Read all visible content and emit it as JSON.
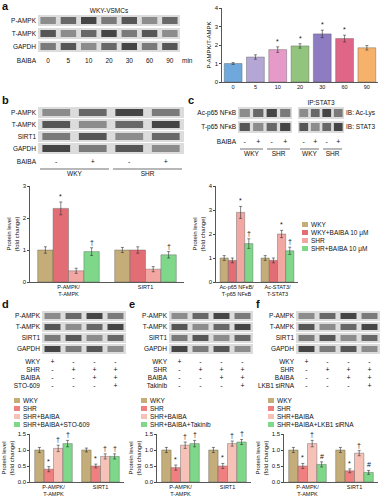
{
  "chart_data": [
    {
      "type": "bar",
      "y_label": "P-AMPK/T-AMPK",
      "categories": [
        "0",
        "5",
        "10",
        "20",
        "30",
        "60",
        "90"
      ],
      "values": [
        1.0,
        1.35,
        1.75,
        1.95,
        2.6,
        2.35,
        1.85
      ],
      "errors": [
        0.05,
        0.12,
        0.15,
        0.12,
        0.2,
        0.18,
        0.12
      ],
      "colors": [
        "#6fa8dc",
        "#b4a7d6",
        "#e69ac9",
        "#93c47d",
        "#8e7cc3",
        "#e06688",
        "#f6b26b"
      ],
      "annotations": [
        null,
        null,
        "*",
        "*",
        "*",
        "*",
        null
      ],
      "ylim": [
        0,
        4
      ],
      "yticks": [
        0,
        1,
        2,
        3,
        4
      ],
      "grid": false
    },
    {
      "type": "bar",
      "y_label": "Protein level (fold change)",
      "categories": [
        "P-AMPK/T-AMPK",
        "SIRT1"
      ],
      "series": [
        {
          "name": "WKY",
          "color": "#c4ad78",
          "values": [
            1.0,
            1.0
          ],
          "errors": [
            0.1,
            0.08
          ],
          "annotations": [
            null,
            null
          ]
        },
        {
          "name": "WKY+BAIBA 10 μM",
          "color": "#e26d74",
          "values": [
            2.3,
            1.0
          ],
          "errors": [
            0.2,
            0.1
          ],
          "annotations": [
            "*",
            null
          ]
        },
        {
          "name": "SHR",
          "color": "#f2a7a3",
          "values": [
            0.35,
            0.4
          ],
          "errors": [
            0.08,
            0.08
          ],
          "annotations": [
            null,
            null
          ]
        },
        {
          "name": "SHR+BAIBA 10 μM",
          "color": "#7fd88a",
          "values": [
            0.95,
            0.85
          ],
          "errors": [
            0.12,
            0.1
          ],
          "annotations": [
            "†",
            "†"
          ]
        }
      ],
      "ylim": [
        0,
        3
      ],
      "yticks": [
        0,
        1,
        2,
        3
      ],
      "grid": false
    },
    {
      "type": "bar",
      "y_label": "Protein level (fold change)",
      "categories": [
        "Ac-p65 NFκB/T-p65 NFκB",
        "Ac-STAT3/T-STAT3"
      ],
      "series": [
        {
          "name": "WKY",
          "color": "#c4ad78",
          "values": [
            1.0,
            1.0
          ],
          "errors": [
            0.1,
            0.1
          ],
          "annotations": [
            null,
            null
          ]
        },
        {
          "name": "WKY+BAIBA 10 μM",
          "color": "#e26d74",
          "values": [
            0.9,
            0.9
          ],
          "errors": [
            0.1,
            0.1
          ],
          "annotations": [
            null,
            null
          ]
        },
        {
          "name": "SHR",
          "color": "#f2a7a3",
          "values": [
            2.9,
            2.0
          ],
          "errors": [
            0.25,
            0.15
          ],
          "annotations": [
            "*",
            "*"
          ]
        },
        {
          "name": "SHR+BAIBA 10 μM",
          "color": "#7fd88a",
          "values": [
            1.6,
            1.3
          ],
          "errors": [
            0.2,
            0.15
          ],
          "annotations": [
            "†",
            "†"
          ]
        }
      ],
      "ylim": [
        0,
        4
      ],
      "yticks": [
        0,
        1,
        2,
        3,
        4
      ],
      "grid": false,
      "legend": "right"
    },
    {
      "type": "bar",
      "y_label": "Protein level (fold change)",
      "categories": [
        "P-AMPK/T-AMPK",
        "SIRT1"
      ],
      "series": [
        {
          "name": "WKY",
          "color": "#c4ad78",
          "values": [
            1.0,
            1.0
          ],
          "errors": [
            0.08,
            0.06
          ],
          "annotations": [
            null,
            null
          ]
        },
        {
          "name": "SHR",
          "color": "#f08080",
          "values": [
            0.4,
            0.5
          ],
          "errors": [
            0.08,
            0.06
          ],
          "annotations": [
            "*",
            "*"
          ]
        },
        {
          "name": "SHR+BAIBA",
          "color": "#f6c2b8",
          "values": [
            1.05,
            0.8
          ],
          "errors": [
            0.1,
            0.08
          ],
          "annotations": [
            "†",
            "†"
          ]
        },
        {
          "name": "SHR+BAIBA+STO-609",
          "color": "#7fd88a",
          "values": [
            1.2,
            0.8
          ],
          "errors": [
            0.1,
            0.08
          ],
          "annotations": [
            "†",
            "†"
          ]
        }
      ],
      "ylim": [
        0,
        1.5
      ],
      "yticks": [
        {
          "value": 0,
          "label": "0.0"
        },
        0.5,
        {
          "value": 1,
          "label": "1.0"
        },
        1.5
      ],
      "grid": false,
      "legend": "top"
    },
    {
      "type": "bar",
      "y_label": "Protein level (fold change)",
      "categories": [
        "P-AMPK/T-AMPK",
        "SIRT1"
      ],
      "series": [
        {
          "name": "WKY",
          "color": "#c4ad78",
          "values": [
            1.0,
            1.0
          ],
          "errors": [
            0.08,
            0.08
          ],
          "annotations": [
            null,
            null
          ]
        },
        {
          "name": "SHR",
          "color": "#f08080",
          "values": [
            0.45,
            0.5
          ],
          "errors": [
            0.08,
            0.08
          ],
          "annotations": [
            "*",
            "*"
          ]
        },
        {
          "name": "SHR+BAIBA",
          "color": "#f6c2b8",
          "values": [
            1.15,
            1.2
          ],
          "errors": [
            0.1,
            0.08
          ],
          "annotations": [
            "†",
            "†"
          ]
        },
        {
          "name": "SHR+BAIBA+Takinib",
          "color": "#7fd88a",
          "values": [
            1.2,
            1.25
          ],
          "errors": [
            0.1,
            0.08
          ],
          "annotations": [
            "†",
            "†"
          ]
        }
      ],
      "ylim": [
        0,
        1.5
      ],
      "yticks": [
        {
          "value": 0,
          "label": "0.0"
        },
        0.5,
        {
          "value": 1,
          "label": "1.0"
        },
        1.5
      ],
      "grid": false,
      "legend": "top"
    },
    {
      "type": "bar",
      "y_label": "Protein level (fold change)",
      "categories": [
        "P-AMPK/T-AMPK",
        "SIRT1"
      ],
      "series": [
        {
          "name": "WKY",
          "color": "#c4ad78",
          "values": [
            1.0,
            1.0
          ],
          "errors": [
            0.08,
            0.08
          ],
          "annotations": [
            null,
            null
          ]
        },
        {
          "name": "SHR",
          "color": "#f08080",
          "values": [
            0.5,
            0.35
          ],
          "errors": [
            0.08,
            0.06
          ],
          "annotations": [
            "*",
            "*"
          ]
        },
        {
          "name": "SHR+BAIBA",
          "color": "#f6c2b8",
          "values": [
            1.2,
            0.9
          ],
          "errors": [
            0.1,
            0.08
          ],
          "annotations": [
            "†",
            "†"
          ]
        },
        {
          "name": "SHR+BAIBA+LKB1 siRNA",
          "color": "#7fd88a",
          "values": [
            0.55,
            0.3
          ],
          "errors": [
            0.08,
            0.06
          ],
          "annotations": [
            "#",
            "#"
          ]
        }
      ],
      "ylim": [
        0,
        1.5
      ],
      "yticks": [
        {
          "value": 0,
          "label": "0.0"
        },
        0.5,
        {
          "value": 1,
          "label": "1.0"
        },
        1.5
      ],
      "grid": false,
      "legend": "top"
    }
  ],
  "blots": [
    {
      "panel": "a",
      "header": "WKY-VSMCs",
      "rows": [
        "P-AMPK",
        "T-AMPK",
        "GAPDH"
      ],
      "treatment": "BAIBA",
      "lanes": [
        "0",
        "5",
        "10",
        "20",
        "30",
        "60",
        "90"
      ],
      "unit": "min"
    },
    {
      "panel": "b",
      "rows": [
        "P-AMPK",
        "T-AMPK",
        "SIRT1",
        "GAPDH"
      ],
      "conditions": [
        {
          "label": "BAIBA",
          "signs": [
            "-",
            "+",
            "-",
            "+"
          ]
        }
      ],
      "groups": [
        "WKY",
        "SHR"
      ]
    },
    {
      "panel": "c",
      "rows": [
        "Ac-p65 NFκB",
        "T-p65 NFκB"
      ],
      "conditions": [
        {
          "label": "BAIBA",
          "signs": [
            "-",
            "+",
            "-",
            "+"
          ]
        }
      ],
      "groups": [
        "WKY",
        "SHR"
      ]
    },
    {
      "header": "IP:STAT3",
      "rows_right": [
        "IB: Ac-Lys",
        "IB: STAT3"
      ],
      "conditions": [
        {
          "label": "",
          "signs": [
            "-",
            "+",
            "-",
            "+"
          ]
        }
      ],
      "groups": [
        "WKY",
        "SHR"
      ]
    },
    {
      "panel": "d",
      "rows": [
        "P-AMPK",
        "T-AMPK",
        "SIRT1",
        "GAPDH"
      ],
      "conditions": [
        {
          "label": "WKY",
          "signs": [
            "+",
            "-",
            "-",
            "-"
          ]
        },
        {
          "label": "SHR",
          "signs": [
            "-",
            "+",
            "+",
            "+"
          ]
        },
        {
          "label": "BAIBA",
          "signs": [
            "-",
            "-",
            "+",
            "+"
          ]
        },
        {
          "label": "STO-609",
          "signs": [
            "-",
            "-",
            "-",
            "+"
          ]
        }
      ]
    },
    {
      "panel": "e",
      "rows": [
        "P-AMPK",
        "T-AMPK",
        "SIRT1",
        "GAPDH"
      ],
      "conditions": [
        {
          "label": "WKY",
          "signs": [
            "+",
            "-",
            "-",
            "-"
          ]
        },
        {
          "label": "SHR",
          "signs": [
            "-",
            "+",
            "+",
            "+"
          ]
        },
        {
          "label": "BAIBA",
          "signs": [
            "-",
            "-",
            "+",
            "+"
          ]
        },
        {
          "label": "Takinib",
          "signs": [
            "-",
            "-",
            "-",
            "+"
          ]
        }
      ]
    },
    {
      "panel": "f",
      "rows": [
        "P-AMPK",
        "T-AMPK",
        "SIRT1",
        "GAPDH"
      ],
      "conditions": [
        {
          "label": "WKY",
          "signs": [
            "+",
            "-",
            "-",
            "-"
          ]
        },
        {
          "label": "SHR",
          "signs": [
            "-",
            "+",
            "+",
            "+"
          ]
        },
        {
          "label": "BAIBA",
          "signs": [
            "-",
            "-",
            "+",
            "+"
          ]
        },
        {
          "label": "LKB1 siRNA",
          "signs": [
            "-",
            "-",
            "-",
            "+"
          ]
        }
      ]
    }
  ]
}
